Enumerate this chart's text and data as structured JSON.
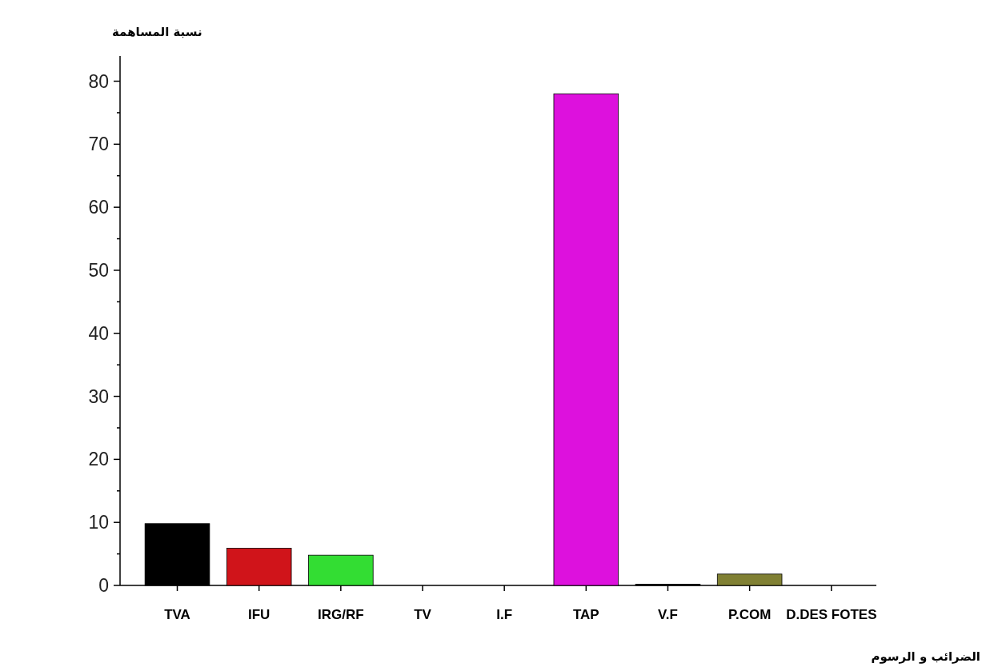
{
  "chart_data": {
    "type": "bar",
    "xlabel": "الضرائب و الرسوم",
    "ylabel": "نسبة المساهمة",
    "categories": [
      "TVA",
      "IFU",
      "IRG/RF",
      "TV",
      "I.F",
      "TAP",
      "V.F",
      "P.COM",
      "D.DES FOTES"
    ],
    "values": [
      9.8,
      5.9,
      4.8,
      0,
      0,
      78,
      0.2,
      1.8,
      0
    ],
    "colors": [
      "#000000",
      "#d0141a",
      "#33dd33",
      "#000000",
      "#000000",
      "#dd11dd",
      "#000000",
      "#808033",
      "#000000"
    ],
    "ylim": [
      0,
      84
    ],
    "yticks": [
      0,
      10,
      20,
      30,
      40,
      50,
      60,
      70,
      80
    ]
  }
}
